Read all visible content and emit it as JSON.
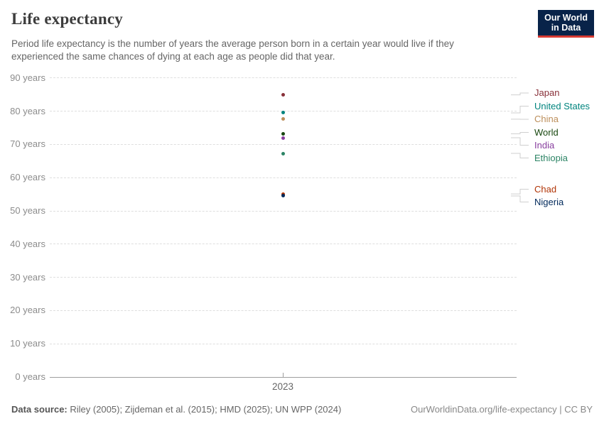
{
  "header": {
    "title": "Life expectancy",
    "subtitle": "Period life expectancy is the number of years the average person born in a certain year would live if they experienced the same chances of dying at each age as people did that year.",
    "logo": {
      "line1": "Our World",
      "line2": "in Data",
      "bg_color": "#082349",
      "accent_color": "#D73A32"
    }
  },
  "chart_data": {
    "type": "scatter",
    "title": "Life expectancy",
    "xlabel": "",
    "ylabel": "years",
    "ylim": [
      0,
      90
    ],
    "grid": "dashed horizontal",
    "legend_position": "right",
    "x_tick_label": "2023",
    "x": [
      2023
    ],
    "y_ticks": [
      {
        "v": 0,
        "label": "0 years"
      },
      {
        "v": 10,
        "label": "10 years"
      },
      {
        "v": 20,
        "label": "20 years"
      },
      {
        "v": 30,
        "label": "30 years"
      },
      {
        "v": 40,
        "label": "40 years"
      },
      {
        "v": 50,
        "label": "50 years"
      },
      {
        "v": 60,
        "label": "60 years"
      },
      {
        "v": 70,
        "label": "70 years"
      },
      {
        "v": 80,
        "label": "80 years"
      },
      {
        "v": 90,
        "label": "90 years"
      }
    ],
    "series": [
      {
        "name": "Japan",
        "value": 84.9,
        "color": "#883039"
      },
      {
        "name": "United States",
        "value": 79.5,
        "color": "#00847E"
      },
      {
        "name": "China",
        "value": 77.6,
        "color": "#BC8E5A"
      },
      {
        "name": "World",
        "value": 73.2,
        "color": "#18470F"
      },
      {
        "name": "India",
        "value": 72.0,
        "color": "#883E9E"
      },
      {
        "name": "Ethiopia",
        "value": 67.3,
        "color": "#2C8465"
      },
      {
        "name": "Chad",
        "value": 55.1,
        "color": "#B13507"
      },
      {
        "name": "Nigeria",
        "value": 54.5,
        "color": "#00295B"
      }
    ]
  },
  "footer": {
    "datasource_label": "Data source:",
    "datasource_text": " Riley (2005); Zijdeman et al. (2015); HMD (2025); UN WPP (2024)",
    "license_text": "OurWorldinData.org/life-expectancy | CC BY"
  }
}
